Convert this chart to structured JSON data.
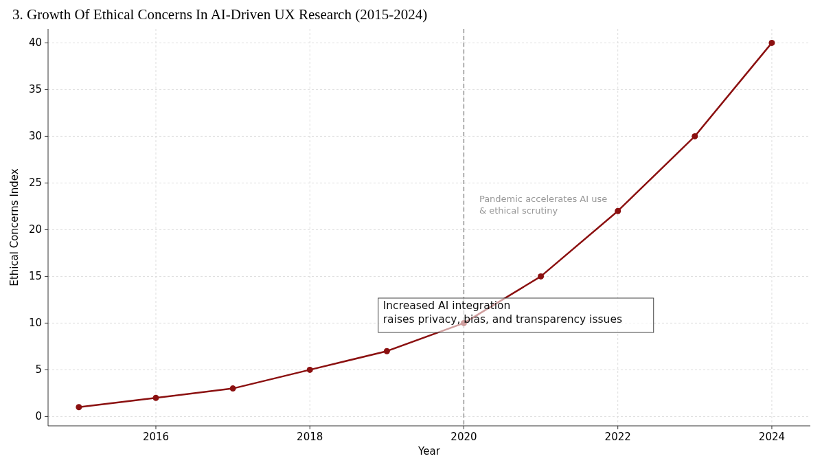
{
  "chart_data": {
    "type": "line",
    "title": "3. Growth Of Ethical Concerns In AI-Driven UX Research (2015-2024)",
    "xlabel": "Year",
    "ylabel": "Ethical Concerns Index",
    "x": [
      2015,
      2016,
      2017,
      2018,
      2019,
      2020,
      2021,
      2022,
      2023,
      2024
    ],
    "series": [
      {
        "color": "#8b1010",
        "values": [
          1,
          2,
          3,
          5,
          7,
          10,
          15,
          22,
          30,
          40
        ]
      }
    ],
    "xlim": [
      2014.6,
      2024.5
    ],
    "xticks": [
      2016,
      2018,
      2020,
      2022,
      2024
    ],
    "ylim": [
      -1,
      41.5
    ],
    "yticks": [
      0,
      5,
      10,
      15,
      20,
      25,
      30,
      35,
      40
    ],
    "grid": true,
    "marker": "circle",
    "line_style": "solid",
    "ref_lines": [
      {
        "axis": "x",
        "value": 2020,
        "color": "#808080",
        "line_style": "dashed"
      }
    ],
    "annotations": [
      "Pandemic accelerates AI use\n& ethical scrutiny",
      "Increased AI integration\nraises privacy, bias, and transparency issues"
    ]
  }
}
